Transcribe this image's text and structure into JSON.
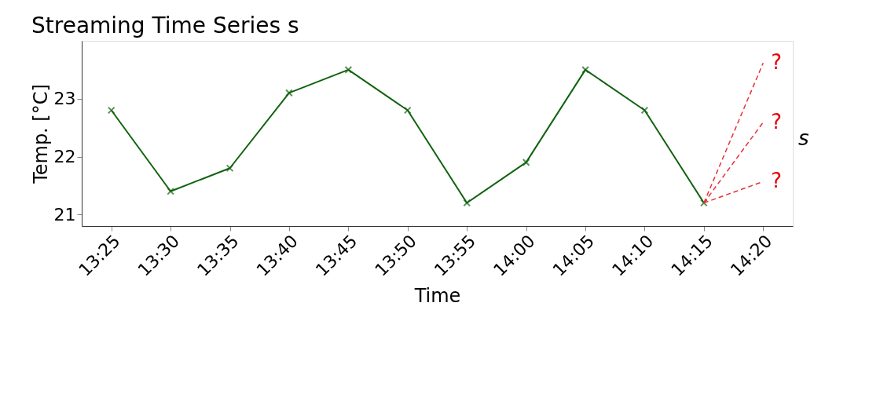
{
  "chart_data": {
    "type": "line",
    "title": "Streaming Time Series s",
    "xlabel": "Time",
    "ylabel": "Temp. [°C]",
    "categories": [
      "13:25",
      "13:30",
      "13:35",
      "13:40",
      "13:45",
      "13:50",
      "13:55",
      "14:00",
      "14:05",
      "14:10",
      "14:15",
      "14:20"
    ],
    "series": [
      {
        "name": "s",
        "color": "#11620f",
        "values": [
          22.8,
          21.4,
          21.8,
          23.1,
          23.5,
          22.8,
          21.2,
          21.9,
          23.5,
          22.8,
          21.2,
          null
        ]
      }
    ],
    "annotations": [
      {
        "text": "?",
        "x": "14:15",
        "y": 21.2
      },
      {
        "text": "?",
        "x": "14:15",
        "y": 21.2
      },
      {
        "text": "?",
        "x": "14:15",
        "y": 21.2
      }
    ],
    "ylim": [
      20.8,
      24.0
    ],
    "yticks": [
      21,
      22,
      23
    ],
    "grid": false,
    "marker": "cross",
    "line_style": "solid"
  }
}
